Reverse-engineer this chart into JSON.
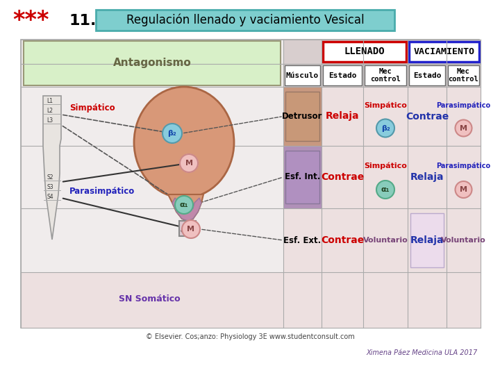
{
  "title_stars": "***",
  "title_number": "11.",
  "title_text": "Regulación llenado y vaciamiento Vesical",
  "title_box_color": "#7ecece",
  "title_box_border": "#4aacac",
  "stars_color": "#cc0000",
  "main_bg": "#f0ecec",
  "col_header_bg": "#d8cece",
  "antagonismo_bg": "#d8f0c8",
  "row_detrusor_bg": "#c89880",
  "row_esf_int_bg": "#b090b8",
  "row_esf_ext_bg": "#e0d8e8",
  "cell_bg": "#ede0e0",
  "cell_bg2": "#e8dce8",
  "llenado_border": "#cc0000",
  "vaciamiento_border": "#2222cc",
  "simpático_color": "#cc0000",
  "parasimpático_color": "#2222bb",
  "relaja_red": "#cc0000",
  "contrae_red": "#cc0000",
  "contrae_blue": "#2233aa",
  "relaja_blue": "#2233aa",
  "voluntario_color": "#774477",
  "copyright_text": "© Elsevier. Cos;anzo: Physiology 3E www.studentconsult.com",
  "author_text": "Ximena Páez Medicina ULA 2017",
  "beta2_circle_color": "#88ccdd",
  "alpha1_circle_color": "#88ccbb",
  "M_circle_color": "#f0c0c0",
  "spine_color": "#e8e4e0",
  "bladder_fill": "#d89878",
  "bladder_edge": "#aa6644",
  "neck_fill": "#c088aa",
  "neck_edge": "#996688"
}
